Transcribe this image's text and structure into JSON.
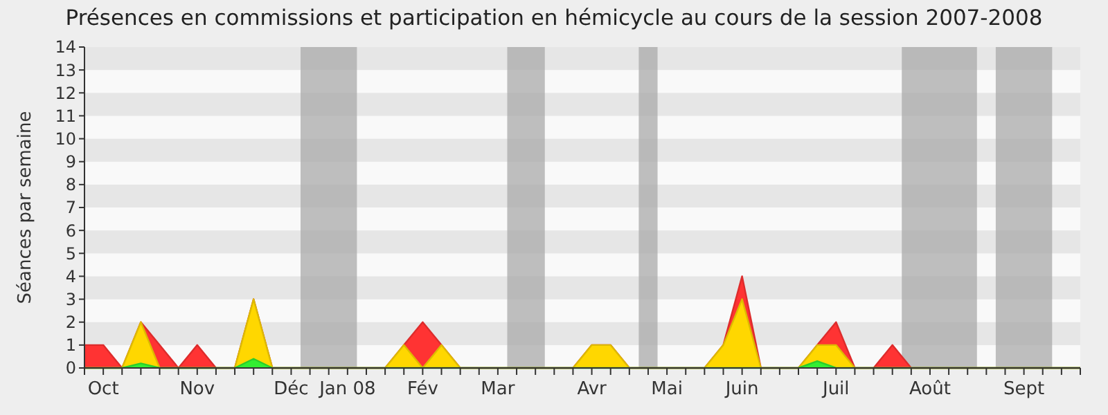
{
  "chart_data": {
    "type": "area",
    "title": "Présences en commissions et participation en hémicycle au cours de la session 2007-2008",
    "ylabel": "Séances par semaine",
    "categories": [
      null,
      "Oct",
      null,
      null,
      null,
      null,
      "Nov",
      null,
      null,
      null,
      null,
      "Déc",
      null,
      null,
      "Jan 08",
      null,
      null,
      null,
      "Fév",
      null,
      null,
      null,
      "Mar",
      null,
      null,
      null,
      null,
      "Avr",
      null,
      null,
      null,
      "Mai",
      null,
      null,
      null,
      "Juin",
      null,
      null,
      null,
      null,
      "Juil",
      null,
      null,
      null,
      null,
      "Août",
      null,
      null,
      null,
      null,
      "Sept",
      null,
      null,
      null
    ],
    "series": [
      {
        "color": "#ff3333",
        "values": [
          1,
          1,
          0,
          2,
          1,
          0,
          1,
          0,
          0,
          3,
          0,
          0,
          0,
          0,
          0,
          0,
          0,
          1,
          2,
          1,
          0,
          0,
          0,
          0,
          0,
          0,
          0,
          1,
          1,
          0,
          0,
          0,
          0,
          0,
          1,
          4,
          0,
          0,
          0,
          1,
          2,
          0,
          0,
          1,
          0,
          0,
          0,
          0,
          0,
          0,
          0,
          0,
          0,
          0
        ]
      },
      {
        "color": "#ffd700",
        "values": [
          0,
          0,
          0,
          2,
          0,
          0,
          0,
          0,
          0,
          3,
          0,
          0,
          0,
          0,
          0,
          0,
          0,
          1,
          0,
          1,
          0,
          0,
          0,
          0,
          0,
          0,
          0,
          1,
          1,
          0,
          0,
          0,
          0,
          0,
          1,
          3,
          0,
          0,
          0,
          1,
          1,
          0,
          0,
          0,
          0,
          0,
          0,
          0,
          0,
          0,
          0,
          0,
          0,
          0
        ]
      },
      {
        "color": "#33ee33",
        "values": [
          0,
          0,
          0,
          0.2,
          0,
          0,
          0,
          0,
          0,
          0.4,
          0,
          0,
          0,
          0,
          0,
          0,
          0,
          0,
          0,
          0,
          0,
          0,
          0,
          0,
          0,
          0,
          0,
          0,
          0,
          0,
          0,
          0,
          0,
          0,
          0,
          0,
          0,
          0,
          0,
          0.3,
          0,
          0,
          0,
          0,
          0,
          0,
          0,
          0,
          0,
          0,
          0,
          0,
          0,
          0
        ]
      }
    ],
    "ylim": [
      0,
      14
    ],
    "yticks": [
      0,
      1,
      2,
      3,
      4,
      5,
      6,
      7,
      8,
      9,
      10,
      11,
      12,
      13,
      14
    ],
    "grid": false
  }
}
